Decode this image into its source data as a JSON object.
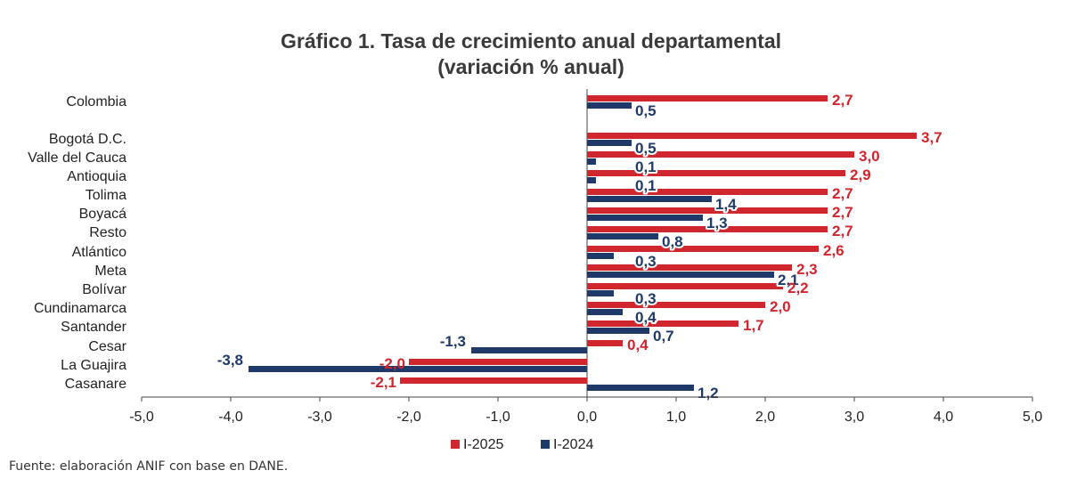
{
  "chart_data": {
    "type": "bar",
    "orientation": "horizontal",
    "title": "Gráfico 1. Tasa de crecimiento anual departamental",
    "subtitle": "(variación % anual)",
    "categories": [
      "Colombia",
      "Bogotá D.C.",
      "Valle del Cauca",
      "Antioquia",
      "Tolima",
      "Boyacá",
      "Resto",
      "Atlántico",
      "Meta",
      "Bolívar",
      "Cundinamarca",
      "Santander",
      "Cesar",
      "La Guajira",
      "Casanare"
    ],
    "series": [
      {
        "name": "I-2025",
        "color": "#d0262e",
        "values": [
          2.7,
          3.7,
          3.0,
          2.9,
          2.7,
          2.7,
          2.7,
          2.6,
          2.3,
          2.2,
          2.0,
          1.7,
          0.4,
          -2.0,
          -2.1
        ],
        "labels": [
          "2,7",
          "3,7",
          "3,0",
          "2,9",
          "2,7",
          "2,7",
          "2,7",
          "2,6",
          "2,3",
          "2,2",
          "2,0",
          "1,7",
          "0,4",
          "-2,0",
          "-2,1"
        ]
      },
      {
        "name": "I-2024",
        "color": "#1f3a68",
        "values": [
          0.5,
          0.5,
          0.1,
          0.1,
          1.4,
          1.3,
          0.8,
          0.3,
          2.1,
          0.3,
          0.4,
          0.7,
          -1.3,
          -3.8,
          1.2
        ],
        "labels": [
          "0,5",
          "0,5",
          "0,1",
          "0,1",
          "1,4",
          "1,3",
          "0,8",
          "0,3",
          "2,1",
          "0,3",
          "0,4",
          "0,7",
          "-1,3",
          "-3,8",
          "1,2"
        ]
      }
    ],
    "xlim": [
      -5.0,
      5.0
    ],
    "x_ticks": [
      -5.0,
      -4.0,
      -3.0,
      -2.0,
      -1.0,
      0.0,
      1.0,
      2.0,
      3.0,
      4.0,
      5.0
    ],
    "x_tick_labels": [
      "-5,0",
      "-4,0",
      "-3,0",
      "-2,0",
      "-1,0",
      "0,0",
      "1,0",
      "2,0",
      "3,0",
      "4,0",
      "5,0"
    ],
    "grid": false,
    "legend_position": "bottom-center"
  },
  "source": "Fuente: elaboración ANIF con base en DANE."
}
